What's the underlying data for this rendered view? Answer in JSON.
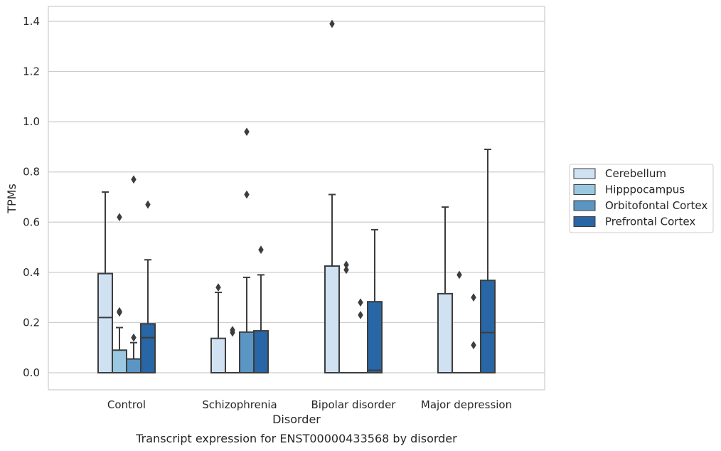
{
  "chart_data": {
    "type": "box",
    "title": "",
    "caption": "Transcript expression for ENST00000433568 by disorder",
    "xlabel": "Disorder",
    "ylabel": "TPMs",
    "ylim": [
      -0.065,
      1.46
    ],
    "yticks": [
      0.0,
      0.2,
      0.4,
      0.6,
      0.8,
      1.0,
      1.2,
      1.4
    ],
    "ytick_labels": [
      "0.0",
      "0.2",
      "0.4",
      "0.6",
      "0.8",
      "1.0",
      "1.2",
      "1.4"
    ],
    "grid": "horizontal",
    "legend_placement": "right",
    "categories": [
      "Control",
      "Schizophrenia",
      "Bipolar disorder",
      "Major depression"
    ],
    "series": [
      {
        "name": "Cerebellum",
        "color": "#d0e1f2",
        "boxes": [
          {
            "min": 0.0,
            "q1": 0.0,
            "median": 0.22,
            "q3": 0.395,
            "max": 0.72,
            "outliers": []
          },
          {
            "min": 0.0,
            "q1": 0.0,
            "median": 0.0,
            "q3": 0.137,
            "max": 0.32,
            "outliers": [
              0.34
            ]
          },
          {
            "min": 0.0,
            "q1": 0.0,
            "median": 0.0,
            "q3": 0.425,
            "max": 0.71,
            "outliers": [
              1.39
            ]
          },
          {
            "min": 0.0,
            "q1": 0.0,
            "median": 0.0,
            "q3": 0.315,
            "max": 0.66,
            "outliers": []
          }
        ]
      },
      {
        "name": "Hipppocampus",
        "color": "#9ac8e0",
        "boxes": [
          {
            "min": 0.0,
            "q1": 0.0,
            "median": 0.0,
            "q3": 0.09,
            "max": 0.18,
            "outliers": [
              0.24,
              0.245,
              0.62
            ]
          },
          {
            "min": 0.0,
            "q1": 0.0,
            "median": 0.0,
            "q3": 0.0,
            "max": 0.0,
            "outliers": [
              0.16,
              0.17
            ]
          },
          {
            "min": 0.0,
            "q1": 0.0,
            "median": 0.0,
            "q3": 0.0,
            "max": 0.0,
            "outliers": [
              0.41,
              0.43
            ]
          },
          {
            "min": 0.0,
            "q1": 0.0,
            "median": 0.0,
            "q3": 0.0,
            "max": 0.0,
            "outliers": [
              0.39
            ]
          }
        ]
      },
      {
        "name": "Orbitofontal Cortex",
        "color": "#5a95c3",
        "boxes": [
          {
            "min": 0.0,
            "q1": 0.0,
            "median": 0.0,
            "q3": 0.055,
            "max": 0.12,
            "outliers": [
              0.14,
              0.77
            ]
          },
          {
            "min": 0.0,
            "q1": 0.0,
            "median": 0.0,
            "q3": 0.162,
            "max": 0.38,
            "outliers": [
              0.71,
              0.96
            ]
          },
          {
            "min": 0.0,
            "q1": 0.0,
            "median": 0.0,
            "q3": 0.0,
            "max": 0.0,
            "outliers": [
              0.23,
              0.28
            ]
          },
          {
            "min": 0.0,
            "q1": 0.0,
            "median": 0.0,
            "q3": 0.0,
            "max": 0.0,
            "outliers": [
              0.11,
              0.3
            ]
          }
        ]
      },
      {
        "name": "Prefrontal Cortex",
        "color": "#2866a6",
        "boxes": [
          {
            "min": 0.0,
            "q1": 0.0,
            "median": 0.14,
            "q3": 0.195,
            "max": 0.45,
            "outliers": [
              0.67
            ]
          },
          {
            "min": 0.0,
            "q1": 0.0,
            "median": 0.0,
            "q3": 0.167,
            "max": 0.39,
            "outliers": [
              0.49
            ]
          },
          {
            "min": 0.0,
            "q1": 0.0,
            "median": 0.01,
            "q3": 0.283,
            "max": 0.57,
            "outliers": []
          },
          {
            "min": 0.0,
            "q1": 0.0,
            "median": 0.16,
            "q3": 0.368,
            "max": 0.89,
            "outliers": []
          }
        ]
      }
    ]
  }
}
